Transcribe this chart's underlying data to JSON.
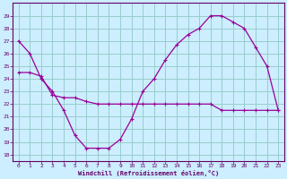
{
  "line1_x": [
    0,
    1,
    2,
    3,
    4,
    5,
    6,
    7,
    8,
    9,
    10,
    11,
    12,
    13,
    14,
    15,
    16,
    17,
    18,
    19,
    20,
    21,
    22,
    23
  ],
  "line1_y": [
    27.0,
    26.0,
    24.0,
    23.0,
    21.5,
    19.5,
    18.5,
    18.5,
    18.5,
    19.2,
    20.8,
    23.0,
    24.0,
    25.5,
    26.7,
    27.5,
    28.0,
    29.0,
    29.0,
    28.5,
    28.0,
    26.5,
    25.0,
    21.5
  ],
  "line2_x": [
    0,
    1,
    2,
    3,
    4,
    5,
    6,
    7,
    8,
    9,
    10,
    11,
    12,
    13,
    14,
    15,
    16,
    17,
    18,
    19,
    20,
    21,
    22,
    23
  ],
  "line2_y": [
    24.5,
    24.5,
    24.2,
    22.7,
    22.5,
    22.5,
    22.2,
    22.0,
    22.0,
    22.0,
    22.0,
    22.0,
    22.0,
    22.0,
    22.0,
    22.0,
    22.0,
    22.0,
    21.5,
    21.5,
    21.5,
    21.5,
    21.5,
    21.5
  ],
  "line_color": "#990099",
  "bg_color": "#cceeff",
  "grid_color": "#99cccc",
  "axis_color": "#660066",
  "xlabel": "Windchill (Refroidissement éolien,°C)",
  "ylim": [
    17.5,
    30
  ],
  "xlim": [
    -0.5,
    23.5
  ],
  "yticks": [
    18,
    19,
    20,
    21,
    22,
    23,
    24,
    25,
    26,
    27,
    28,
    29
  ],
  "xticks": [
    0,
    1,
    2,
    3,
    4,
    5,
    6,
    7,
    8,
    9,
    10,
    11,
    12,
    13,
    14,
    15,
    16,
    17,
    18,
    19,
    20,
    21,
    22,
    23
  ],
  "marker": "+"
}
